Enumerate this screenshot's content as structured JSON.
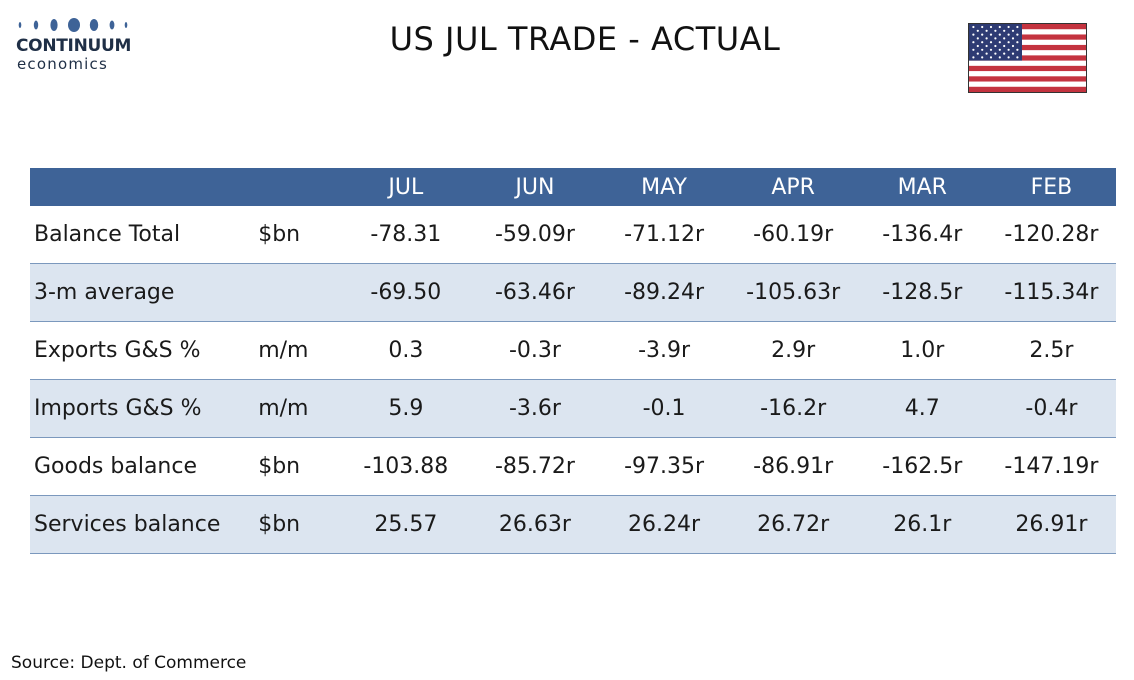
{
  "logo": {
    "brand": "CONTINUUM",
    "sub": "economics"
  },
  "title": "US JUL TRADE - ACTUAL",
  "flag_icon": "us-flag-icon",
  "colors": {
    "header_bg": "#3e6397",
    "header_text": "#ffffff",
    "alt_row_bg": "#dce5f0",
    "row_border": "#7b98bd"
  },
  "table": {
    "columns": [
      "JUL",
      "JUN",
      "MAY",
      "APR",
      "MAR",
      "FEB"
    ],
    "rows": [
      {
        "label": "Balance Total",
        "unit": "$bn",
        "values": [
          "-78.31",
          "-59.09r",
          "-71.12r",
          "-60.19r",
          "-136.4r",
          "-120.28r"
        ]
      },
      {
        "label": "3-m average",
        "unit": "",
        "values": [
          "-69.50",
          "-63.46r",
          "-89.24r",
          "-105.63r",
          "-128.5r",
          "-115.34r"
        ]
      },
      {
        "label": "Exports G&S %",
        "unit": "m/m",
        "values": [
          "0.3",
          "-0.3r",
          "-3.9r",
          "2.9r",
          "1.0r",
          "2.5r"
        ]
      },
      {
        "label": "Imports G&S %",
        "unit": "m/m",
        "values": [
          "5.9",
          "-3.6r",
          "-0.1",
          "-16.2r",
          "4.7",
          "-0.4r"
        ]
      },
      {
        "label": "Goods balance",
        "unit": "$bn",
        "values": [
          "-103.88",
          "-85.72r",
          "-97.35r",
          "-86.91r",
          "-162.5r",
          "-147.19r"
        ]
      },
      {
        "label": "Services balance",
        "unit": "$bn",
        "values": [
          "25.57",
          "26.63r",
          "26.24r",
          "26.72r",
          "26.1r",
          "26.91r"
        ]
      }
    ]
  },
  "source": "Source: Dept. of Commerce"
}
